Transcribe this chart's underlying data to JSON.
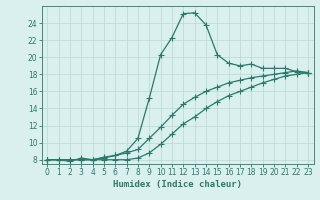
{
  "line1_x": [
    0,
    1,
    2,
    3,
    4,
    5,
    6,
    7,
    8,
    9,
    10,
    11,
    12,
    13,
    14,
    15,
    16,
    17,
    18,
    19,
    20,
    21,
    22,
    23
  ],
  "line1_y": [
    8,
    8,
    7.8,
    8.2,
    8.0,
    8.3,
    8.5,
    9.0,
    10.5,
    15.2,
    20.3,
    22.3,
    25.1,
    25.2,
    23.8,
    20.3,
    19.3,
    19.0,
    19.2,
    18.7,
    18.7,
    18.7,
    18.3,
    18.2
  ],
  "line2_x": [
    0,
    1,
    2,
    3,
    4,
    5,
    6,
    7,
    8,
    9,
    10,
    11,
    12,
    13,
    14,
    15,
    16,
    17,
    18,
    19,
    20,
    21,
    22,
    23
  ],
  "line2_y": [
    8,
    8,
    8,
    8,
    8,
    8.2,
    8.5,
    8.8,
    9.2,
    10.5,
    11.8,
    13.2,
    14.5,
    15.3,
    16.0,
    16.5,
    17.0,
    17.3,
    17.6,
    17.8,
    18.0,
    18.2,
    18.4,
    18.2
  ],
  "line3_x": [
    0,
    1,
    2,
    3,
    4,
    5,
    6,
    7,
    8,
    9,
    10,
    11,
    12,
    13,
    14,
    15,
    16,
    17,
    18,
    19,
    20,
    21,
    22,
    23
  ],
  "line3_y": [
    8,
    8,
    8,
    8,
    8,
    8,
    8,
    8,
    8.2,
    8.8,
    9.8,
    11.0,
    12.2,
    13.0,
    14.0,
    14.8,
    15.5,
    16.0,
    16.5,
    17.0,
    17.4,
    17.8,
    18.0,
    18.2
  ],
  "line_color": "#2a7a6a",
  "bg_color": "#daf0ee",
  "grid_color": "#b8d8d5",
  "xlabel": "Humidex (Indice chaleur)",
  "xlim": [
    -0.5,
    23.5
  ],
  "ylim": [
    7.5,
    26
  ],
  "yticks": [
    8,
    10,
    12,
    14,
    16,
    18,
    20,
    22,
    24
  ],
  "xticks": [
    0,
    1,
    2,
    3,
    4,
    5,
    6,
    7,
    8,
    9,
    10,
    11,
    12,
    13,
    14,
    15,
    16,
    17,
    18,
    19,
    20,
    21,
    22,
    23
  ],
  "marker": "+",
  "markersize": 4,
  "linewidth": 0.9,
  "tick_fontsize": 5.5,
  "xlabel_fontsize": 6.5
}
